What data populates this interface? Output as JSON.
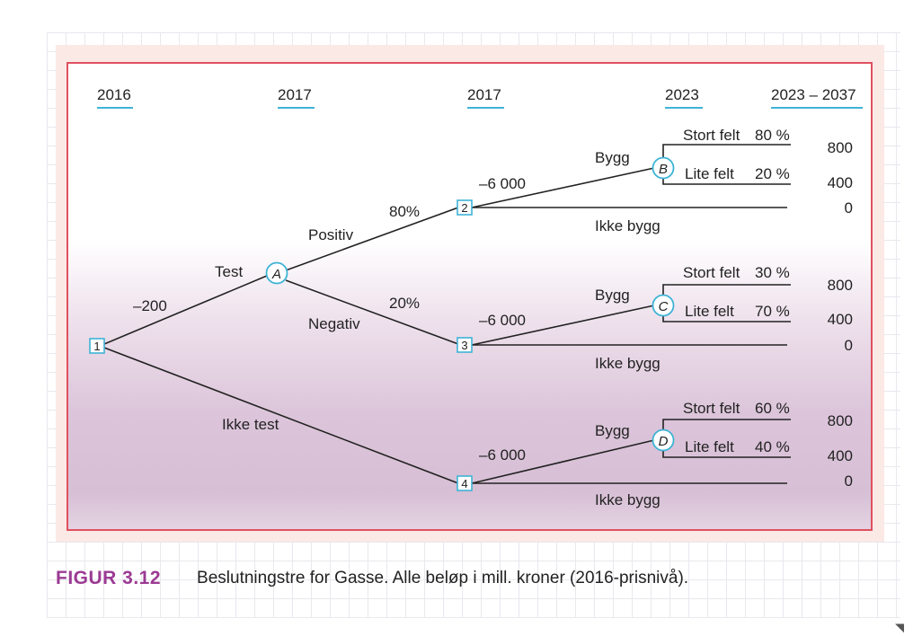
{
  "years": [
    "2016",
    "2017",
    "2017",
    "2023",
    "2023 – 2037"
  ],
  "nodes": {
    "d1": "1",
    "d2": "2",
    "d3": "3",
    "d4": "4",
    "cA": "A",
    "cB": "B",
    "cC": "C",
    "cD": "D"
  },
  "labels": {
    "cost_test": "–200",
    "test": "Test",
    "no_test": "Ikke test",
    "positive": "Positiv",
    "negative": "Negativ",
    "p_positive": "80%",
    "p_negative": "20%"
  },
  "branches": [
    {
      "cost": "–6 000",
      "build": "Bygg",
      "no_build": "Ikke bygg",
      "big": "Stort felt",
      "big_p": "80 %",
      "small": "Lite felt",
      "small_p": "20 %",
      "v_big": "800",
      "v_small": "400",
      "v_none": "0"
    },
    {
      "cost": "–6 000",
      "build": "Bygg",
      "no_build": "Ikke bygg",
      "big": "Stort felt",
      "big_p": "30 %",
      "small": "Lite felt",
      "small_p": "70 %",
      "v_big": "800",
      "v_small": "400",
      "v_none": "0"
    },
    {
      "cost": "–6 000",
      "build": "Bygg",
      "no_build": "Ikke bygg",
      "big": "Stort felt",
      "big_p": "60 %",
      "small": "Lite felt",
      "small_p": "40 %",
      "v_big": "800",
      "v_small": "400",
      "v_none": "0"
    }
  ],
  "caption": {
    "label": "FIGUR 3.12",
    "text": "Beslutningstre for Gasse. Alle beløp i mill. kroner (2016-prisnivå)."
  },
  "colors": {
    "frame_border": "#e0515f",
    "node_stroke": "#3fb3d6",
    "caption_label": "#9b3a93"
  }
}
